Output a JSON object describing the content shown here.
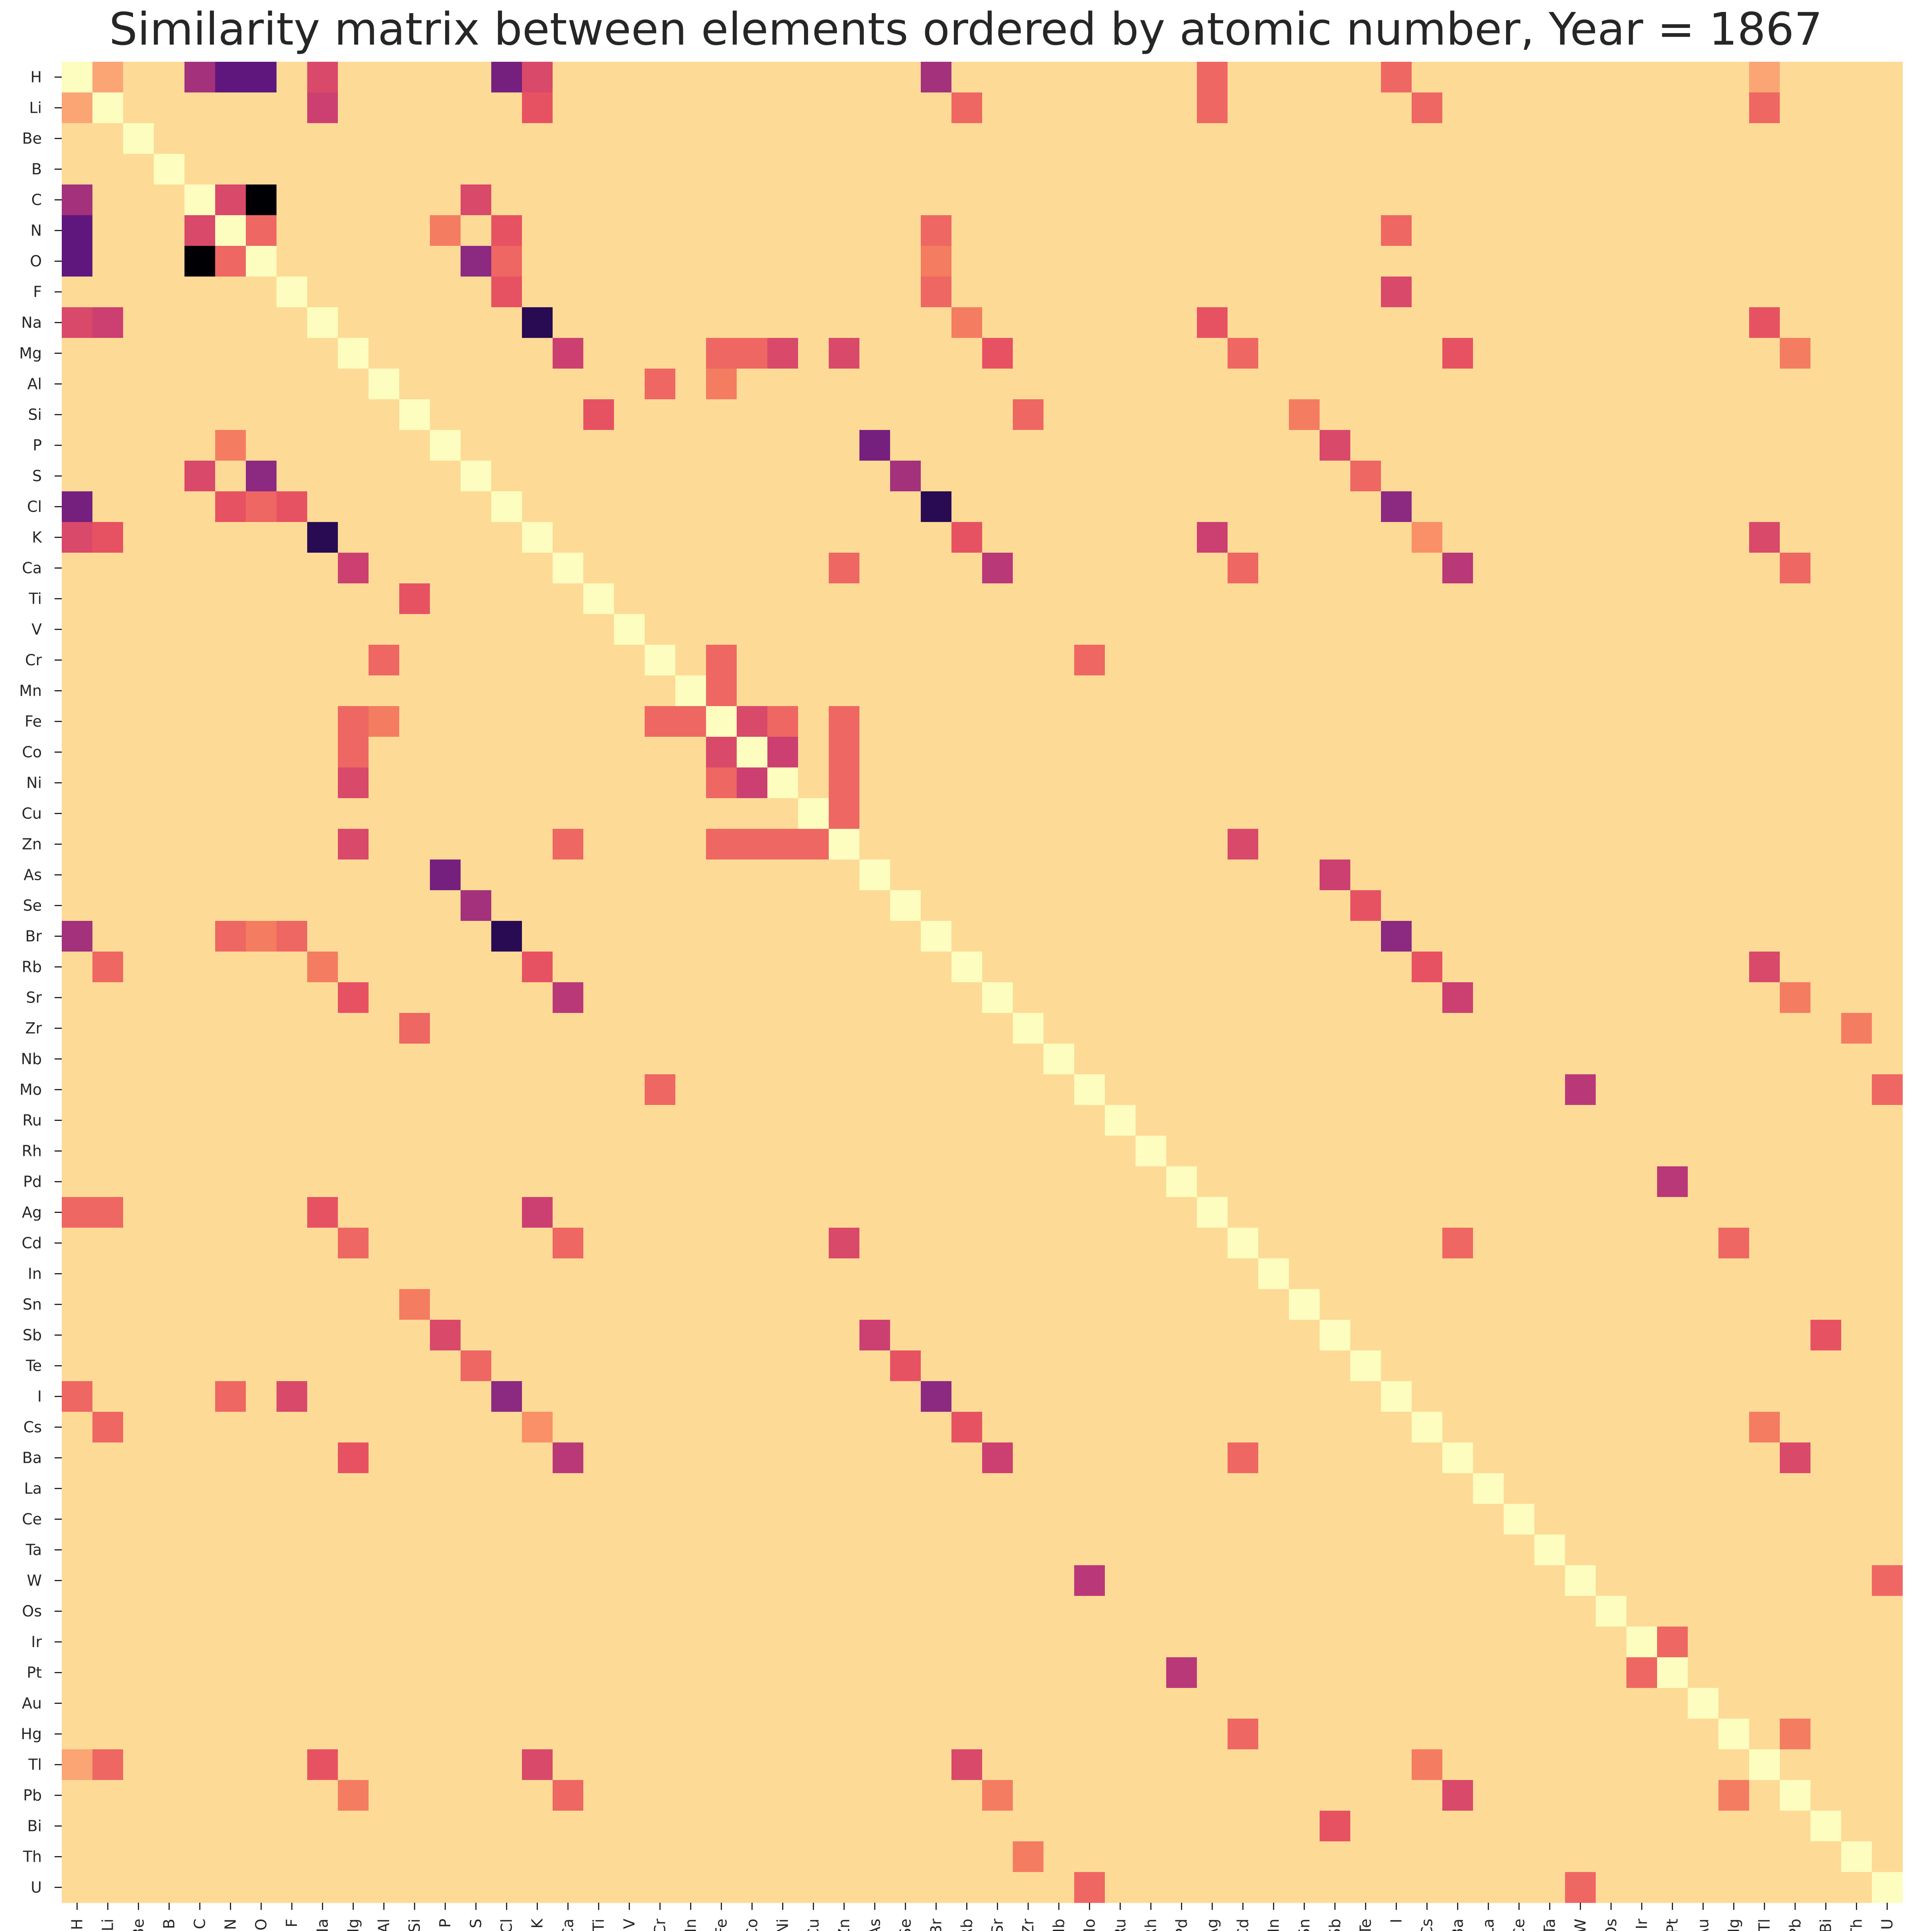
{
  "chart_data": {
    "type": "heatmap",
    "title": "Similarity matrix between elements ordered by atomic number, Year = 1867",
    "xlabel": "",
    "ylabel": "",
    "colormap": "magma_r",
    "value_range": [
      0,
      1
    ],
    "grid": false,
    "legend": "none",
    "labels": [
      "H",
      "Li",
      "Be",
      "B",
      "C",
      "N",
      "O",
      "F",
      "Na",
      "Mg",
      "Al",
      "Si",
      "P",
      "S",
      "Cl",
      "K",
      "Ca",
      "Ti",
      "V",
      "Cr",
      "Mn",
      "Fe",
      "Co",
      "Ni",
      "Cu",
      "Zn",
      "As",
      "Se",
      "Br",
      "Rb",
      "Sr",
      "Zr",
      "Nb",
      "Mo",
      "Ru",
      "Rh",
      "Pd",
      "Ag",
      "Cd",
      "In",
      "Sn",
      "Sb",
      "Te",
      "I",
      "Cs",
      "Ba",
      "La",
      "Ce",
      "Ta",
      "W",
      "Os",
      "Ir",
      "Pt",
      "Au",
      "Hg",
      "Tl",
      "Pb",
      "Bi",
      "Th",
      "U"
    ],
    "baseline_similarity": 0.15,
    "diagonal_value": 0.0,
    "highlighted_pairs": [
      {
        "a": "H",
        "b": "C",
        "value": 0.7
      },
      {
        "a": "H",
        "b": "N",
        "value": 0.85
      },
      {
        "a": "H",
        "b": "O",
        "value": 0.85
      },
      {
        "a": "H",
        "b": "Cl",
        "value": 0.8
      },
      {
        "a": "H",
        "b": "K",
        "value": 0.55
      },
      {
        "a": "H",
        "b": "Na",
        "value": 0.55
      },
      {
        "a": "H",
        "b": "Br",
        "value": 0.7
      },
      {
        "a": "H",
        "b": "Ag",
        "value": 0.45
      },
      {
        "a": "H",
        "b": "I",
        "value": 0.45
      },
      {
        "a": "H",
        "b": "Li",
        "value": 0.3
      },
      {
        "a": "H",
        "b": "Tl",
        "value": 0.3
      },
      {
        "a": "Li",
        "b": "Na",
        "value": 0.6
      },
      {
        "a": "Li",
        "b": "K",
        "value": 0.5
      },
      {
        "a": "Li",
        "b": "Rb",
        "value": 0.45
      },
      {
        "a": "Li",
        "b": "Cs",
        "value": 0.45
      },
      {
        "a": "Li",
        "b": "Ag",
        "value": 0.45
      },
      {
        "a": "Li",
        "b": "Tl",
        "value": 0.45
      },
      {
        "a": "C",
        "b": "O",
        "value": 1.0
      },
      {
        "a": "C",
        "b": "N",
        "value": 0.55
      },
      {
        "a": "C",
        "b": "S",
        "value": 0.55
      },
      {
        "a": "N",
        "b": "O",
        "value": 0.45
      },
      {
        "a": "N",
        "b": "Cl",
        "value": 0.5
      },
      {
        "a": "N",
        "b": "Br",
        "value": 0.45
      },
      {
        "a": "N",
        "b": "I",
        "value": 0.45
      },
      {
        "a": "N",
        "b": "P",
        "value": 0.4
      },
      {
        "a": "O",
        "b": "S",
        "value": 0.75
      },
      {
        "a": "O",
        "b": "Cl",
        "value": 0.45
      },
      {
        "a": "O",
        "b": "Br",
        "value": 0.4
      },
      {
        "a": "F",
        "b": "Cl",
        "value": 0.5
      },
      {
        "a": "F",
        "b": "I",
        "value": 0.55
      },
      {
        "a": "F",
        "b": "Br",
        "value": 0.45
      },
      {
        "a": "Na",
        "b": "K",
        "value": 0.95
      },
      {
        "a": "Na",
        "b": "Ag",
        "value": 0.5
      },
      {
        "a": "Na",
        "b": "Tl",
        "value": 0.5
      },
      {
        "a": "Na",
        "b": "Rb",
        "value": 0.4
      },
      {
        "a": "K",
        "b": "Rb",
        "value": 0.5
      },
      {
        "a": "K",
        "b": "Ag",
        "value": 0.6
      },
      {
        "a": "K",
        "b": "Tl",
        "value": 0.55
      },
      {
        "a": "K",
        "b": "Cs",
        "value": 0.35
      },
      {
        "a": "Rb",
        "b": "Tl",
        "value": 0.55
      },
      {
        "a": "Rb",
        "b": "Cs",
        "value": 0.5
      },
      {
        "a": "Cs",
        "b": "Tl",
        "value": 0.4
      },
      {
        "a": "Mg",
        "b": "Ca",
        "value": 0.6
      },
      {
        "a": "Mg",
        "b": "Zn",
        "value": 0.55
      },
      {
        "a": "Mg",
        "b": "Ni",
        "value": 0.55
      },
      {
        "a": "Mg",
        "b": "Co",
        "value": 0.45
      },
      {
        "a": "Mg",
        "b": "Sr",
        "value": 0.5
      },
      {
        "a": "Mg",
        "b": "Ba",
        "value": 0.5
      },
      {
        "a": "Mg",
        "b": "Cd",
        "value": 0.45
      },
      {
        "a": "Mg",
        "b": "Fe",
        "value": 0.45
      },
      {
        "a": "Mg",
        "b": "Pb",
        "value": 0.4
      },
      {
        "a": "Ca",
        "b": "Sr",
        "value": 0.65
      },
      {
        "a": "Ca",
        "b": "Ba",
        "value": 0.65
      },
      {
        "a": "Ca",
        "b": "Cd",
        "value": 0.45
      },
      {
        "a": "Ca",
        "b": "Pb",
        "value": 0.45
      },
      {
        "a": "Ca",
        "b": "Zn",
        "value": 0.45
      },
      {
        "a": "Sr",
        "b": "Ba",
        "value": 0.6
      },
      {
        "a": "Sr",
        "b": "Pb",
        "value": 0.4
      },
      {
        "a": "Ba",
        "b": "Pb",
        "value": 0.55
      },
      {
        "a": "Al",
        "b": "Cr",
        "value": 0.45
      },
      {
        "a": "Al",
        "b": "Fe",
        "value": 0.4
      },
      {
        "a": "Si",
        "b": "Ti",
        "value": 0.5
      },
      {
        "a": "Si",
        "b": "Zr",
        "value": 0.45
      },
      {
        "a": "Si",
        "b": "Sn",
        "value": 0.4
      },
      {
        "a": "P",
        "b": "As",
        "value": 0.8
      },
      {
        "a": "P",
        "b": "Sb",
        "value": 0.55
      },
      {
        "a": "S",
        "b": "Se",
        "value": 0.7
      },
      {
        "a": "S",
        "b": "Te",
        "value": 0.45
      },
      {
        "a": "Cl",
        "b": "Br",
        "value": 0.95
      },
      {
        "a": "Cl",
        "b": "I",
        "value": 0.75
      },
      {
        "a": "Br",
        "b": "I",
        "value": 0.75
      },
      {
        "a": "As",
        "b": "Sb",
        "value": 0.6
      },
      {
        "a": "Se",
        "b": "Te",
        "value": 0.5
      },
      {
        "a": "Sb",
        "b": "Bi",
        "value": 0.5
      },
      {
        "a": "Mn",
        "b": "Fe",
        "value": 0.45
      },
      {
        "a": "Fe",
        "b": "Co",
        "value": 0.55
      },
      {
        "a": "Fe",
        "b": "Cr",
        "value": 0.45
      },
      {
        "a": "Fe",
        "b": "Ni",
        "value": 0.45
      },
      {
        "a": "Fe",
        "b": "Zn",
        "value": 0.45
      },
      {
        "a": "Co",
        "b": "Ni",
        "value": 0.6
      },
      {
        "a": "Co",
        "b": "Zn",
        "value": 0.45
      },
      {
        "a": "Ni",
        "b": "Zn",
        "value": 0.45
      },
      {
        "a": "Cu",
        "b": "Zn",
        "value": 0.45
      },
      {
        "a": "Zn",
        "b": "Cd",
        "value": 0.55
      },
      {
        "a": "Cd",
        "b": "Ba",
        "value": 0.45
      },
      {
        "a": "Cd",
        "b": "Hg",
        "value": 0.45
      },
      {
        "a": "Mo",
        "b": "W",
        "value": 0.65
      },
      {
        "a": "Mo",
        "b": "U",
        "value": 0.45
      },
      {
        "a": "Mo",
        "b": "Cr",
        "value": 0.45
      },
      {
        "a": "W",
        "b": "U",
        "value": 0.45
      },
      {
        "a": "Zr",
        "b": "Th",
        "value": 0.4
      },
      {
        "a": "Pd",
        "b": "Pt",
        "value": 0.65
      },
      {
        "a": "Ir",
        "b": "Pt",
        "value": 0.45
      },
      {
        "a": "Hg",
        "b": "Pb",
        "value": 0.4
      }
    ]
  }
}
